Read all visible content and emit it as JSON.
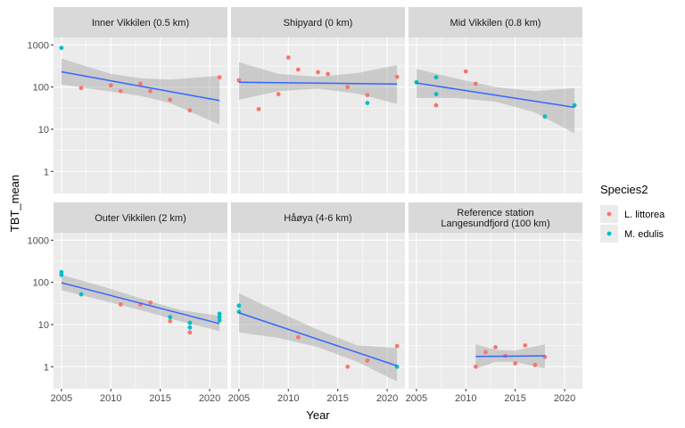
{
  "chart_data": {
    "type": "scatter",
    "facets": [
      {
        "title_lines": [
          "Inner Vikkilen (0.5 km)"
        ],
        "points": [
          {
            "species": "M. edulis",
            "x": 2005,
            "y": 850
          },
          {
            "species": "L. littorea",
            "x": 2007,
            "y": 95
          },
          {
            "species": "L. littorea",
            "x": 2010,
            "y": 110
          },
          {
            "species": "L. littorea",
            "x": 2011,
            "y": 80
          },
          {
            "species": "L. littorea",
            "x": 2013,
            "y": 120
          },
          {
            "species": "L. littorea",
            "x": 2014,
            "y": 80
          },
          {
            "species": "L. littorea",
            "x": 2016,
            "y": 50
          },
          {
            "species": "L. littorea",
            "x": 2018,
            "y": 28
          },
          {
            "species": "L. littorea",
            "x": 2021,
            "y": 170
          }
        ],
        "fit": {
          "x": [
            2005,
            2021
          ],
          "y": [
            230,
            48
          ]
        },
        "band": {
          "x": [
            2005,
            2010,
            2013,
            2016,
            2021
          ],
          "upper": [
            470,
            205,
            162,
            150,
            185
          ],
          "lower": [
            115,
            78,
            62,
            42,
            13
          ]
        }
      },
      {
        "title_lines": [
          "Shipyard (0 km)"
        ],
        "points": [
          {
            "species": "L. littorea",
            "x": 2005,
            "y": 145
          },
          {
            "species": "L. littorea",
            "x": 2007,
            "y": 30
          },
          {
            "species": "L. littorea",
            "x": 2009,
            "y": 68
          },
          {
            "species": "L. littorea",
            "x": 2010,
            "y": 500
          },
          {
            "species": "L. littorea",
            "x": 2011,
            "y": 260
          },
          {
            "species": "L. littorea",
            "x": 2013,
            "y": 225
          },
          {
            "species": "L. littorea",
            "x": 2014,
            "y": 205
          },
          {
            "species": "L. littorea",
            "x": 2016,
            "y": 100
          },
          {
            "species": "L. littorea",
            "x": 2018,
            "y": 65
          },
          {
            "species": "M. edulis",
            "x": 2018,
            "y": 42
          },
          {
            "species": "L. littorea",
            "x": 2021,
            "y": 175
          }
        ],
        "fit": {
          "x": [
            2005,
            2021
          ],
          "y": [
            130,
            118
          ]
        },
        "band": {
          "x": [
            2005,
            2009,
            2013,
            2017,
            2021
          ],
          "upper": [
            390,
            205,
            175,
            215,
            330
          ],
          "lower": [
            50,
            80,
            92,
            70,
            40
          ]
        }
      },
      {
        "title_lines": [
          "Mid Vikkilen (0.8 km)"
        ],
        "points": [
          {
            "species": "M. edulis",
            "x": 2005,
            "y": 130
          },
          {
            "species": "M. edulis",
            "x": 2007,
            "y": 170
          },
          {
            "species": "M. edulis",
            "x": 2007,
            "y": 68
          },
          {
            "species": "L. littorea",
            "x": 2007,
            "y": 37
          },
          {
            "species": "L. littorea",
            "x": 2010,
            "y": 235
          },
          {
            "species": "L. littorea",
            "x": 2011,
            "y": 120
          },
          {
            "species": "M. edulis",
            "x": 2018,
            "y": 20
          },
          {
            "species": "M. edulis",
            "x": 2021,
            "y": 37
          }
        ],
        "fit": {
          "x": [
            2005,
            2021
          ],
          "y": [
            125,
            33
          ]
        },
        "band": {
          "x": [
            2005,
            2009,
            2013,
            2017,
            2021
          ],
          "upper": [
            270,
            160,
            100,
            80,
            95
          ],
          "lower": [
            55,
            55,
            45,
            25,
            8
          ]
        }
      },
      {
        "title_lines": [
          "Outer Vikkilen (2 km)"
        ],
        "points": [
          {
            "species": "M. edulis",
            "x": 2005,
            "y": 175
          },
          {
            "species": "M. edulis",
            "x": 2005,
            "y": 150
          },
          {
            "species": "M. edulis",
            "x": 2007,
            "y": 52
          },
          {
            "species": "L. littorea",
            "x": 2011,
            "y": 30
          },
          {
            "species": "L. littorea",
            "x": 2013,
            "y": 30
          },
          {
            "species": "L. littorea",
            "x": 2014,
            "y": 33
          },
          {
            "species": "L. littorea",
            "x": 2016,
            "y": 12
          },
          {
            "species": "M. edulis",
            "x": 2016,
            "y": 15
          },
          {
            "species": "L. littorea",
            "x": 2018,
            "y": 6.5
          },
          {
            "species": "M. edulis",
            "x": 2018,
            "y": 11
          },
          {
            "species": "M. edulis",
            "x": 2018,
            "y": 8.5
          },
          {
            "species": "M. edulis",
            "x": 2021,
            "y": 18
          },
          {
            "species": "M. edulis",
            "x": 2021,
            "y": 15
          },
          {
            "species": "M. edulis",
            "x": 2021,
            "y": 12.5
          }
        ],
        "fit": {
          "x": [
            2005,
            2021
          ],
          "y": [
            98,
            10.5
          ]
        },
        "band": {
          "x": [
            2005,
            2009,
            2013,
            2017,
            2021
          ],
          "upper": [
            150,
            82,
            42,
            22,
            16
          ],
          "lower": [
            65,
            38,
            22,
            12,
            7
          ]
        }
      },
      {
        "title_lines": [
          "Håøya (4-6 km)"
        ],
        "points": [
          {
            "species": "M. edulis",
            "x": 2005,
            "y": 28
          },
          {
            "species": "M. edulis",
            "x": 2005,
            "y": 20
          },
          {
            "species": "L. littorea",
            "x": 2011,
            "y": 5
          },
          {
            "species": "L. littorea",
            "x": 2016,
            "y": 1
          },
          {
            "species": "L. littorea",
            "x": 2018,
            "y": 1.4
          },
          {
            "species": "L. littorea",
            "x": 2021,
            "y": 3.1
          },
          {
            "species": "M. edulis",
            "x": 2021,
            "y": 1
          }
        ],
        "fit": {
          "x": [
            2005,
            2021
          ],
          "y": [
            19,
            1.05
          ]
        },
        "band": {
          "x": [
            2005,
            2009,
            2013,
            2017,
            2021
          ],
          "upper": [
            55,
            20,
            7.5,
            3.2,
            2.8
          ],
          "lower": [
            6.5,
            4.8,
            2.9,
            1.3,
            0.45
          ]
        }
      },
      {
        "title_lines": [
          "Reference station",
          "Langesundfjord (100 km)"
        ],
        "points": [
          {
            "species": "L. littorea",
            "x": 2011,
            "y": 1
          },
          {
            "species": "L. littorea",
            "x": 2012,
            "y": 2.2
          },
          {
            "species": "L. littorea",
            "x": 2013,
            "y": 2.9
          },
          {
            "species": "L. littorea",
            "x": 2014,
            "y": 1.8
          },
          {
            "species": "L. littorea",
            "x": 2015,
            "y": 1.2
          },
          {
            "species": "L. littorea",
            "x": 2016,
            "y": 3.2
          },
          {
            "species": "L. littorea",
            "x": 2017,
            "y": 1.1
          },
          {
            "species": "L. littorea",
            "x": 2018,
            "y": 1.7
          }
        ],
        "fit": {
          "x": [
            2011,
            2018
          ],
          "y": [
            1.75,
            1.8
          ]
        },
        "band": {
          "x": [
            2011,
            2013,
            2015,
            2018
          ],
          "upper": [
            3.4,
            2.5,
            2.4,
            3.4
          ],
          "lower": [
            0.9,
            1.3,
            1.3,
            0.9
          ]
        }
      }
    ],
    "xlabel": "Year",
    "ylabel": "TBT_mean",
    "xlim": [
      2004.2,
      2021.8
    ],
    "ylim": [
      0.3,
      1500
    ],
    "yscale": "log",
    "xticks": [
      2005,
      2010,
      2015,
      2020
    ],
    "yticks": [
      1,
      10,
      100,
      1000
    ],
    "legend": {
      "title": "Species2",
      "position": "right",
      "entries": [
        {
          "label": "L. littorea",
          "color": "#F8766D"
        },
        {
          "label": "M. edulis",
          "color": "#00BFC4"
        }
      ]
    },
    "grid": true,
    "colors": {
      "fit_line": "#3366FF",
      "band": "#999999",
      "panel_bg": "#EBEBEB",
      "strip_bg": "#D9D9D9"
    }
  }
}
